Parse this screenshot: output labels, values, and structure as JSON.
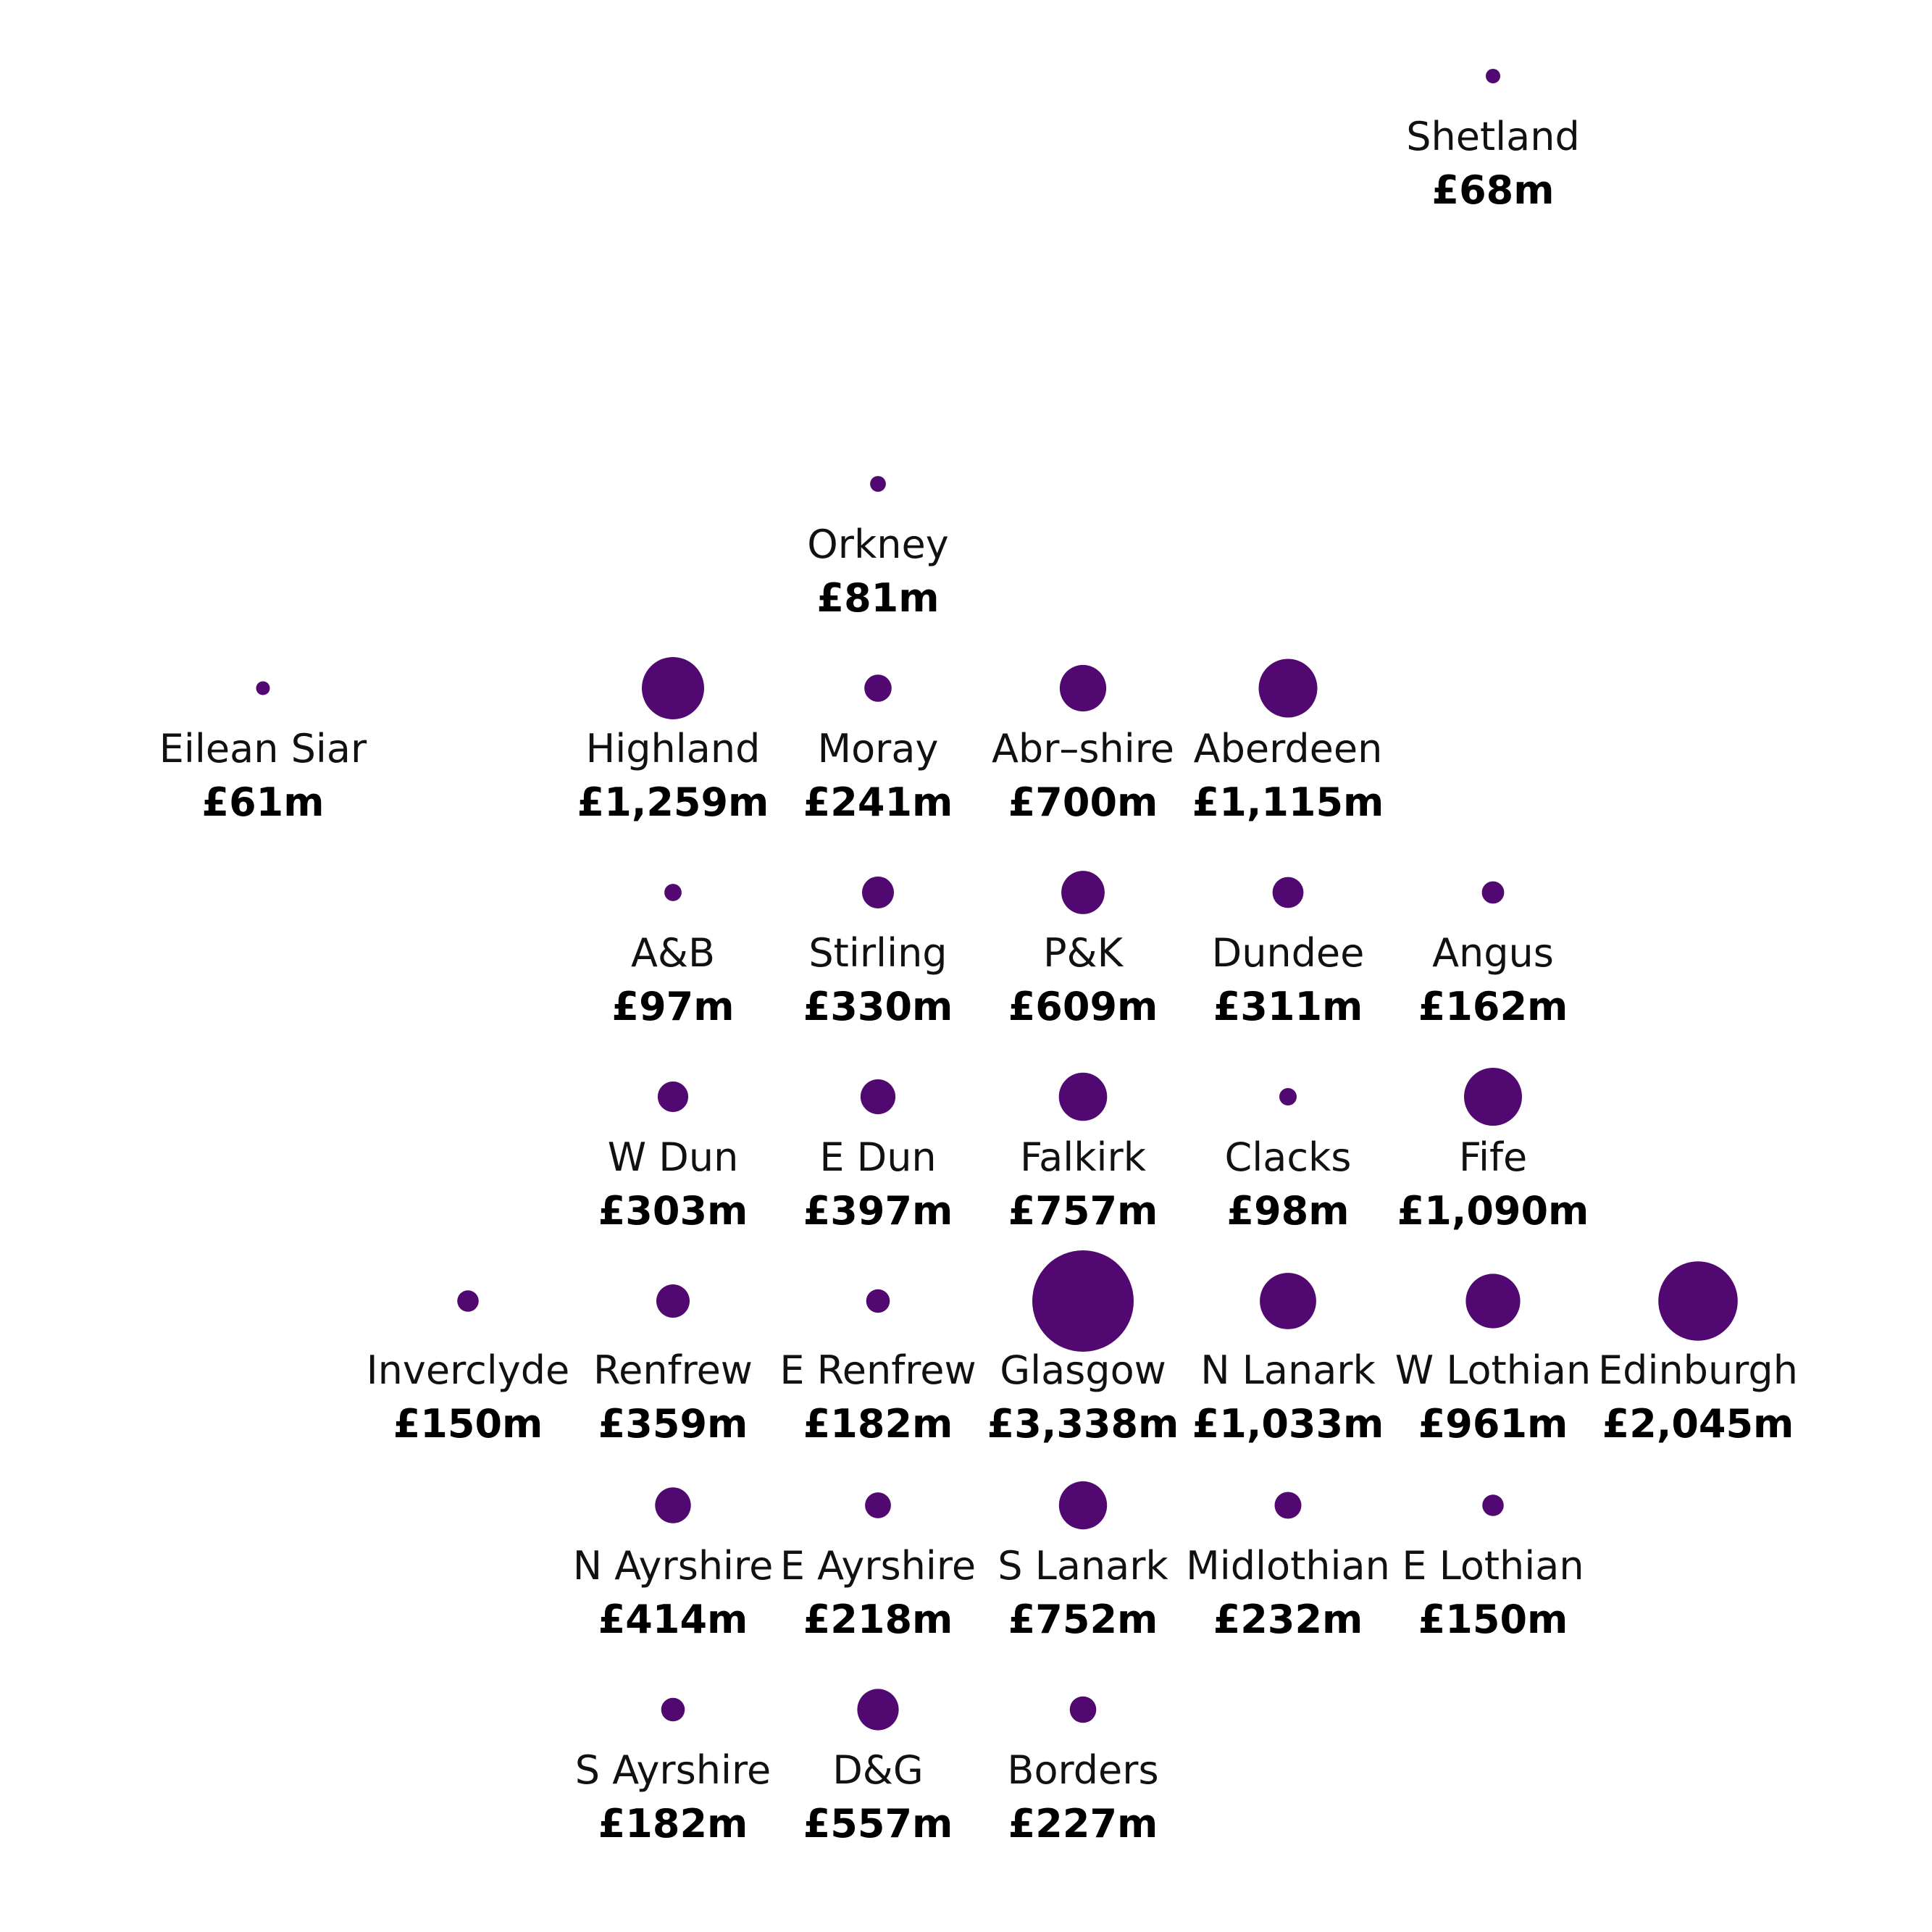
{
  "chart_data": {
    "type": "scatter",
    "subtype": "proportional-symbol tile map",
    "title": "",
    "xlabel": "",
    "ylabel": "",
    "grid": false,
    "legend": "none",
    "colors": {
      "bubble": "#510870",
      "name_text": "#111111",
      "value_text": "#000000"
    },
    "areas": [
      {
        "name": "Shetland",
        "value_label": "£68m",
        "value": 68,
        "col": 6,
        "row": 0
      },
      {
        "name": "Orkney",
        "value_label": "£81m",
        "value": 81,
        "col": 3,
        "row": 1
      },
      {
        "name": "Eilean Siar",
        "value_label": "£61m",
        "value": 61,
        "col": 0,
        "row": 2
      },
      {
        "name": "Highland",
        "value_label": "£1,259m",
        "value": 1259,
        "col": 2,
        "row": 2
      },
      {
        "name": "Moray",
        "value_label": "£241m",
        "value": 241,
        "col": 3,
        "row": 2
      },
      {
        "name": "Abr–shire",
        "value_label": "£700m",
        "value": 700,
        "col": 4,
        "row": 2
      },
      {
        "name": "Aberdeen",
        "value_label": "£1,115m",
        "value": 1115,
        "col": 5,
        "row": 2
      },
      {
        "name": "A&B",
        "value_label": "£97m",
        "value": 97,
        "col": 2,
        "row": 3
      },
      {
        "name": "Stirling",
        "value_label": "£330m",
        "value": 330,
        "col": 3,
        "row": 3
      },
      {
        "name": "P&K",
        "value_label": "£609m",
        "value": 609,
        "col": 4,
        "row": 3
      },
      {
        "name": "Dundee",
        "value_label": "£311m",
        "value": 311,
        "col": 5,
        "row": 3
      },
      {
        "name": "Angus",
        "value_label": "£162m",
        "value": 162,
        "col": 6,
        "row": 3
      },
      {
        "name": "W Dun",
        "value_label": "£303m",
        "value": 303,
        "col": 2,
        "row": 4
      },
      {
        "name": "E Dun",
        "value_label": "£397m",
        "value": 397,
        "col": 3,
        "row": 4
      },
      {
        "name": "Falkirk",
        "value_label": "£757m",
        "value": 757,
        "col": 4,
        "row": 4
      },
      {
        "name": "Clacks",
        "value_label": "£98m",
        "value": 98,
        "col": 5,
        "row": 4
      },
      {
        "name": "Fife",
        "value_label": "£1,090m",
        "value": 1090,
        "col": 6,
        "row": 4
      },
      {
        "name": "Inverclyde",
        "value_label": "£150m",
        "value": 150,
        "col": 1,
        "row": 5
      },
      {
        "name": "Renfrew",
        "value_label": "£359m",
        "value": 359,
        "col": 2,
        "row": 5
      },
      {
        "name": "E Renfrew",
        "value_label": "£182m",
        "value": 182,
        "col": 3,
        "row": 5
      },
      {
        "name": "Glasgow",
        "value_label": "£3,338m",
        "value": 3338,
        "col": 4,
        "row": 5
      },
      {
        "name": "N Lanark",
        "value_label": "£1,033m",
        "value": 1033,
        "col": 5,
        "row": 5
      },
      {
        "name": "W Lothian",
        "value_label": "£961m",
        "value": 961,
        "col": 6,
        "row": 5
      },
      {
        "name": "Edinburgh",
        "value_label": "£2,045m",
        "value": 2045,
        "col": 7,
        "row": 5
      },
      {
        "name": "N Ayrshire",
        "value_label": "£414m",
        "value": 414,
        "col": 2,
        "row": 6
      },
      {
        "name": "E Ayrshire",
        "value_label": "£218m",
        "value": 218,
        "col": 3,
        "row": 6
      },
      {
        "name": "S Lanark",
        "value_label": "£752m",
        "value": 752,
        "col": 4,
        "row": 6
      },
      {
        "name": "Midlothian",
        "value_label": "£232m",
        "value": 232,
        "col": 5,
        "row": 6
      },
      {
        "name": "E Lothian",
        "value_label": "£150m",
        "value": 150,
        "col": 6,
        "row": 6
      },
      {
        "name": "S Ayrshire",
        "value_label": "£182m",
        "value": 182,
        "col": 2,
        "row": 7
      },
      {
        "name": "D&G",
        "value_label": "£557m",
        "value": 557,
        "col": 3,
        "row": 7
      },
      {
        "name": "Borders",
        "value_label": "£227m",
        "value": 227,
        "col": 4,
        "row": 7
      }
    ]
  }
}
